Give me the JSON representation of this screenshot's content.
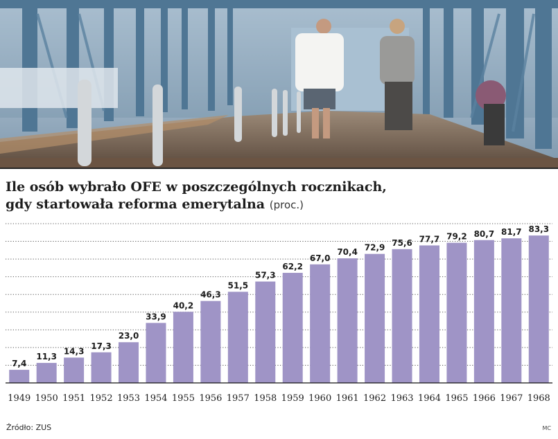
{
  "header": {
    "title_line1": "Ile osób wybrało OFE w poszczególnych rocznikach,",
    "title_line2": "gdy startowała reforma emerytalna",
    "unit": "(proc.)"
  },
  "footer": {
    "source": "Źródło: ZUS",
    "credit": "MC"
  },
  "colors": {
    "bar": "#9f94c6",
    "grid": "#555555",
    "text": "#1d1d1d"
  },
  "chart_data": {
    "type": "bar",
    "title": "Ile osób wybrało OFE w poszczególnych rocznikach, gdy startowała reforma emerytalna (proc.)",
    "xlabel": "",
    "ylabel": "",
    "categories": [
      "1949",
      "1950",
      "1951",
      "1952",
      "1953",
      "1954",
      "1955",
      "1956",
      "1957",
      "1958",
      "1959",
      "1960",
      "1961",
      "1962",
      "1963",
      "1964",
      "1965",
      "1966",
      "1967",
      "1968"
    ],
    "values": [
      7.4,
      11.3,
      14.3,
      17.3,
      23.0,
      33.9,
      40.2,
      46.3,
      51.5,
      57.3,
      62.2,
      67.0,
      70.4,
      72.9,
      75.6,
      77.7,
      79.2,
      80.7,
      81.7,
      83.3
    ],
    "labels": [
      "7,4",
      "11,3",
      "14,3",
      "17,3",
      "23,0",
      "33,9",
      "40,2",
      "46,3",
      "51,5",
      "57,3",
      "62,2",
      "67,0",
      "70,4",
      "72,9",
      "75,6",
      "77,7",
      "79,2",
      "80,7",
      "81,7",
      "83,3"
    ],
    "ylim": [
      0,
      90
    ],
    "grid": true,
    "legend": "none"
  }
}
